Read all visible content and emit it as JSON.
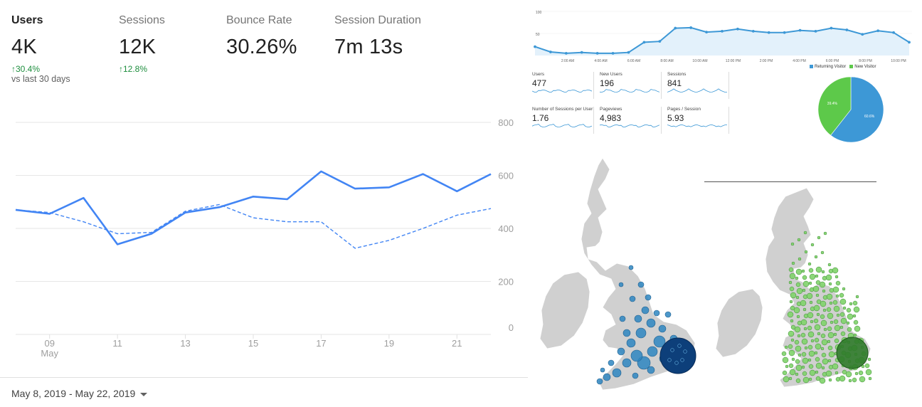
{
  "metrics": [
    {
      "label": "Users",
      "value": "4K",
      "change": "↑30.4%"
    },
    {
      "label": "Sessions",
      "value": "12K",
      "change": "↑12.8%"
    },
    {
      "label": "Bounce Rate",
      "value": "30.26%",
      "change": ""
    },
    {
      "label": "Session Duration",
      "value": "7m 13s",
      "change": ""
    }
  ],
  "comparison_note": "vs last 30 days",
  "date_range": "May 8, 2019 - May 22, 2019",
  "colors": {
    "primary_line": "#4285f4",
    "positive": "#1e8e3e",
    "top_line": "#3d98d6",
    "new_visitor": "#5dc94a",
    "returning_visitor": "#3d98d6",
    "map_land": "#d0d0d0",
    "map_blue": "#2e86c1",
    "map_navy": "#0d3f7a",
    "map_green": "#57a844"
  },
  "chart_data": [
    {
      "type": "line",
      "x": [
        "8",
        "9",
        "10",
        "11",
        "12",
        "13",
        "14",
        "15",
        "16",
        "17",
        "18",
        "19",
        "20",
        "21",
        "22"
      ],
      "x_tick_labels": [
        "09",
        "11",
        "13",
        "15",
        "17",
        "19",
        "21"
      ],
      "x_tick_sublabel": "May",
      "y_ticks": [
        "0",
        "200",
        "400",
        "600",
        "800"
      ],
      "ylim": [
        0,
        800
      ],
      "series": [
        {
          "style": "solid",
          "values": [
            470,
            455,
            515,
            340,
            380,
            460,
            480,
            520,
            510,
            615,
            550,
            555,
            605,
            540,
            605
          ]
        },
        {
          "style": "dashed",
          "values": [
            470,
            460,
            425,
            380,
            385,
            465,
            490,
            440,
            425,
            425,
            325,
            355,
            400,
            450,
            475
          ]
        }
      ],
      "grid": true
    },
    {
      "type": "area",
      "y_ticks": [
        "100",
        "50"
      ],
      "ylim": [
        0,
        100
      ],
      "x_tick_labels": [
        "2:00 AM",
        "4:00 AM",
        "6:00 AM",
        "8:00 AM",
        "10:00 AM",
        "12:00 PM",
        "2:00 PM",
        "4:00 PM",
        "6:00 PM",
        "8:00 PM",
        "10:00 PM"
      ],
      "values": [
        20,
        8,
        5,
        7,
        5,
        5,
        7,
        30,
        32,
        62,
        63,
        53,
        55,
        60,
        55,
        52,
        52,
        57,
        55,
        62,
        58,
        48,
        56,
        52,
        30
      ]
    },
    {
      "type": "pie",
      "categories": [
        "Returning Visitor",
        "New Visitor"
      ],
      "values": [
        60.6,
        39.4
      ],
      "slice_labels": [
        "60.6%",
        "39.4%"
      ]
    }
  ],
  "summary_tiles": [
    {
      "label": "Users",
      "value": "477"
    },
    {
      "label": "New Users",
      "value": "196"
    },
    {
      "label": "Sessions",
      "value": "841"
    },
    {
      "label": "Number of Sessions per User",
      "value": "1.76"
    },
    {
      "label": "Pageviews",
      "value": "4,983"
    },
    {
      "label": "Pages / Session",
      "value": "5.93"
    }
  ],
  "pie_legend": [
    "Returning Visitor",
    "New Visitor"
  ],
  "maps": [
    {
      "name": "uk-map-blue",
      "marker_color": "#2e86c1"
    },
    {
      "name": "uk-map-green",
      "marker_color": "#57a844"
    }
  ]
}
